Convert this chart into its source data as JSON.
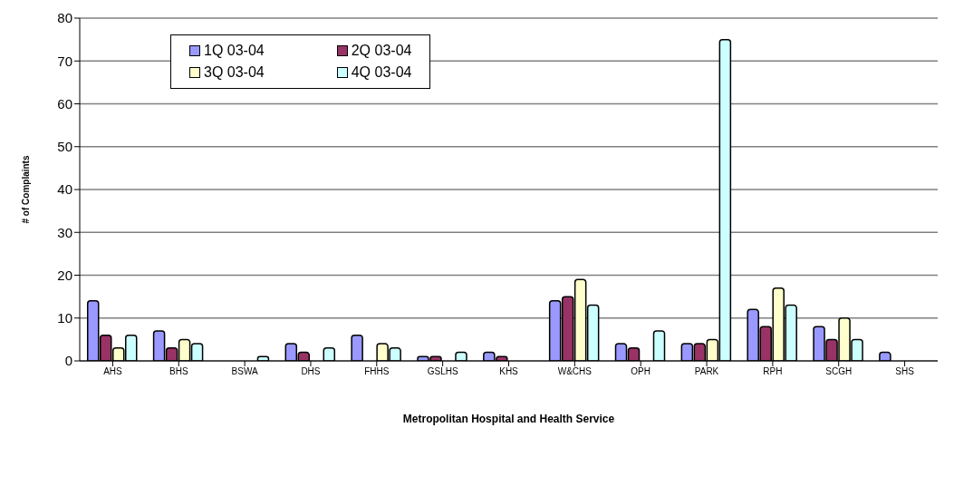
{
  "chart_data": {
    "type": "bar",
    "xlabel": "Metropolitan Hospital and Health Service",
    "ylabel": "# of Complaints",
    "categories": [
      "AHS",
      "BHS",
      "BSWA",
      "DHS",
      "FHHS",
      "GSLHS",
      "KHS",
      "W&CHS",
      "OPH",
      "PARK",
      "RPH",
      "SCGH",
      "SHS"
    ],
    "series": [
      {
        "name": "1Q 03-04",
        "color": "#9999ff",
        "values": [
          14,
          7,
          0,
          4,
          6,
          1,
          2,
          14,
          4,
          4,
          12,
          8,
          2
        ]
      },
      {
        "name": "2Q 03-04",
        "color": "#993366",
        "values": [
          6,
          3,
          0,
          2,
          0,
          1,
          1,
          15,
          3,
          4,
          8,
          5,
          0
        ]
      },
      {
        "name": "3Q 03-04",
        "color": "#ffffcc",
        "values": [
          3,
          5,
          0,
          0,
          4,
          0,
          0,
          19,
          0,
          5,
          17,
          10,
          0
        ]
      },
      {
        "name": "4Q 03-04",
        "color": "#ccffff",
        "values": [
          6,
          4,
          1,
          3,
          3,
          2,
          0,
          13,
          7,
          75,
          13,
          5,
          0
        ]
      }
    ],
    "ylim": [
      0,
      80
    ],
    "yticks": [
      0,
      10,
      20,
      30,
      40,
      50,
      60,
      70,
      80
    ],
    "grid": "y",
    "legend": "top left"
  }
}
